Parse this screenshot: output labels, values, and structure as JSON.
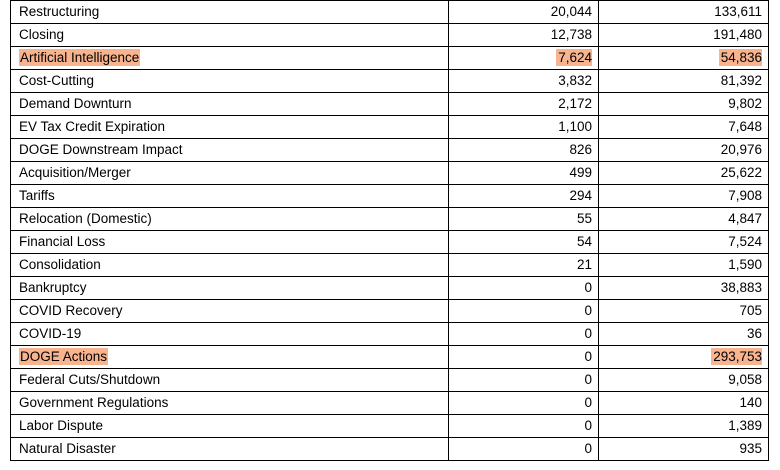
{
  "highlight_color": "#f8b48e",
  "rows": [
    {
      "reason": "Restructuring",
      "count_a": "20,044",
      "count_b": "133,611",
      "highlight": false
    },
    {
      "reason": "Closing",
      "count_a": "12,738",
      "count_b": "191,480",
      "highlight": false
    },
    {
      "reason": "Artificial Intelligence",
      "count_a": "7,624",
      "count_b": "54,836",
      "highlight": true
    },
    {
      "reason": "Cost-Cutting",
      "count_a": "3,832",
      "count_b": "81,392",
      "highlight": false
    },
    {
      "reason": "Demand Downturn",
      "count_a": "2,172",
      "count_b": "9,802",
      "highlight": false
    },
    {
      "reason": "EV Tax Credit Expiration",
      "count_a": "1,100",
      "count_b": "7,648",
      "highlight": false
    },
    {
      "reason": "DOGE Downstream Impact",
      "count_a": "826",
      "count_b": "20,976",
      "highlight": false
    },
    {
      "reason": "Acquisition/Merger",
      "count_a": "499",
      "count_b": "25,622",
      "highlight": false
    },
    {
      "reason": "Tariffs",
      "count_a": "294",
      "count_b": "7,908",
      "highlight": false
    },
    {
      "reason": "Relocation (Domestic)",
      "count_a": "55",
      "count_b": "4,847",
      "highlight": false
    },
    {
      "reason": "Financial Loss",
      "count_a": "54",
      "count_b": "7,524",
      "highlight": false
    },
    {
      "reason": "Consolidation",
      "count_a": "21",
      "count_b": "1,590",
      "highlight": false
    },
    {
      "reason": "Bankruptcy",
      "count_a": "0",
      "count_b": "38,883",
      "highlight": false
    },
    {
      "reason": "COVID Recovery",
      "count_a": "0",
      "count_b": "705",
      "highlight": false
    },
    {
      "reason": "COVID-19",
      "count_a": "0",
      "count_b": "36",
      "highlight": false
    },
    {
      "reason": "DOGE Actions",
      "count_a": "0",
      "count_b": "293,753",
      "highlight": "partial"
    },
    {
      "reason": "Federal Cuts/Shutdown",
      "count_a": "0",
      "count_b": "9,058",
      "highlight": false
    },
    {
      "reason": "Government Regulations",
      "count_a": "0",
      "count_b": "140",
      "highlight": false
    },
    {
      "reason": "Labor Dispute",
      "count_a": "0",
      "count_b": "1,389",
      "highlight": false
    },
    {
      "reason": "Natural Disaster",
      "count_a": "0",
      "count_b": "935",
      "highlight": false
    }
  ]
}
